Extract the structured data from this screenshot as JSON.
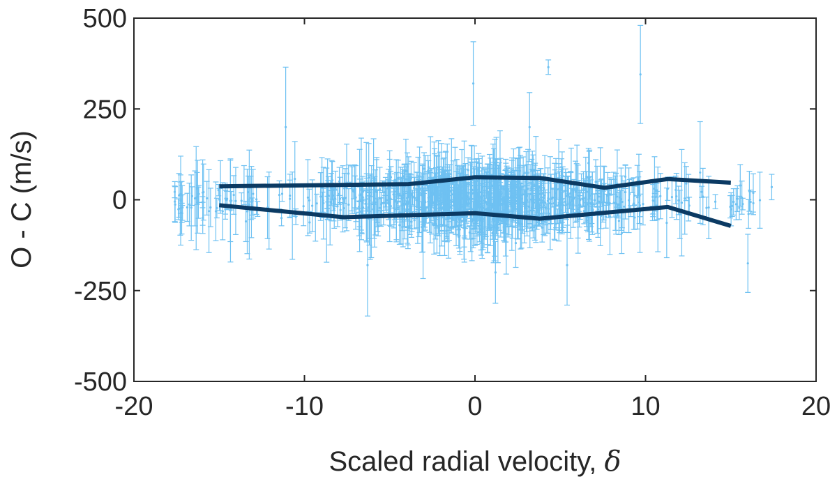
{
  "chart_data": {
    "type": "scatter",
    "title": "",
    "xlabel": "Scaled radial velocity, ",
    "xlabel_symbol": "δ",
    "ylabel": "O - C (m/s)",
    "xlim": [
      -20,
      20
    ],
    "ylim": [
      -500,
      500
    ],
    "x_ticks": [
      -20,
      -10,
      0,
      10,
      20
    ],
    "y_ticks": [
      -500,
      -250,
      0,
      250,
      500
    ],
    "x_tick_labels": [
      "-20",
      "-10",
      "0",
      "10",
      "20"
    ],
    "y_tick_labels": [
      "-500",
      "-250",
      "0",
      "250",
      "500"
    ],
    "grid": false,
    "colors": {
      "points": "#6ec1f2",
      "envelope": "#0b3a63",
      "axes": "#262626"
    },
    "series": [
      {
        "name": "residuals",
        "kind": "errorbar-scatter",
        "highlighted_points": [
          {
            "x": 9.7,
            "y": 345,
            "err": 135
          },
          {
            "x": -0.1,
            "y": 320,
            "err": 115
          },
          {
            "x": 4.3,
            "y": 365,
            "err": 20
          },
          {
            "x": -11.1,
            "y": 200,
            "err": 165
          },
          {
            "x": 13.2,
            "y": 75,
            "err": 140
          },
          {
            "x": 16.0,
            "y": -175,
            "err": 80
          },
          {
            "x": 17.4,
            "y": 35,
            "err": 35
          },
          {
            "x": -17.6,
            "y": -5,
            "err": 55
          },
          {
            "x": 3.2,
            "y": 200,
            "err": 95
          },
          {
            "x": -6.3,
            "y": -180,
            "err": 140
          },
          {
            "x": 5.4,
            "y": -180,
            "err": 110
          },
          {
            "x": 1.2,
            "y": -200,
            "err": 85
          }
        ],
        "approx_point_count": 900,
        "approx_spread_std": 32
      },
      {
        "name": "upper envelope",
        "kind": "line",
        "x": [
          -15,
          -3.9,
          0,
          3.8,
          7.6,
          11.3,
          15
        ],
        "y": [
          37,
          43,
          62,
          60,
          33,
          57,
          47
        ]
      },
      {
        "name": "lower envelope",
        "kind": "line",
        "x": [
          -15,
          -7.7,
          0,
          3.8,
          11.3,
          15
        ],
        "y": [
          -15,
          -48,
          -37,
          -52,
          -20,
          -72
        ]
      }
    ]
  }
}
